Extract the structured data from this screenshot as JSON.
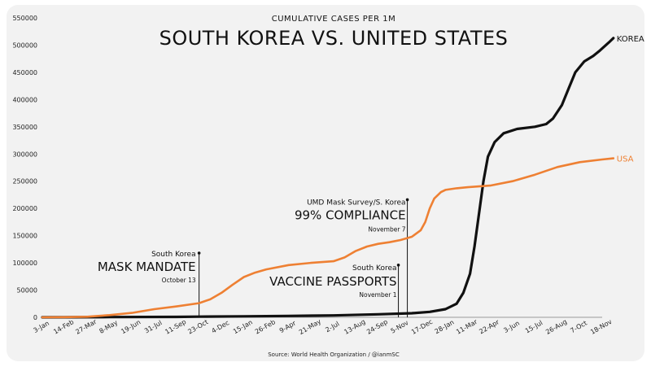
{
  "chart_data": {
    "type": "line",
    "subtitle": "CUMULATIVE CASES PER 1M",
    "title": "SOUTH KOREA VS. UNITED STATES",
    "source": "Source: World Health Organization / @ianmSC",
    "xlabel": "",
    "ylabel": "",
    "ylim": [
      0,
      550000
    ],
    "y_ticks": [
      0,
      50000,
      100000,
      150000,
      200000,
      250000,
      300000,
      350000,
      400000,
      450000,
      500000,
      550000
    ],
    "x_ticks": [
      "3-Jan",
      "14-Feb",
      "27-Mar",
      "8-May",
      "19-Jun",
      "31-Jul",
      "11-Sep",
      "23-Oct",
      "4-Dec",
      "15-Jan",
      "26-Feb",
      "9-Apr",
      "21-May",
      "2-Jul",
      "13-Aug",
      "24-Sep",
      "5-Nov",
      "17-Dec",
      "28-Jan",
      "11-Mar",
      "22-Apr",
      "3-Jun",
      "15-Jul",
      "26-Aug",
      "7-Oct",
      "18-Nov"
    ],
    "grid": false,
    "legend": "inline-end-labels",
    "series": [
      {
        "name": "KOREA",
        "color": "#111111",
        "points": [
          [
            0,
            0
          ],
          [
            3,
            500
          ],
          [
            6,
            800
          ],
          [
            7,
            1200
          ],
          [
            9,
            1800
          ],
          [
            11,
            2500
          ],
          [
            13,
            3500
          ],
          [
            15,
            5500
          ],
          [
            16.5,
            7500
          ],
          [
            17.3,
            10000
          ],
          [
            18,
            15000
          ],
          [
            18.5,
            25000
          ],
          [
            18.8,
            45000
          ],
          [
            19.1,
            80000
          ],
          [
            19.3,
            130000
          ],
          [
            19.5,
            190000
          ],
          [
            19.7,
            250000
          ],
          [
            19.9,
            295000
          ],
          [
            20.2,
            322000
          ],
          [
            20.6,
            338000
          ],
          [
            21.2,
            346000
          ],
          [
            22,
            350000
          ],
          [
            22.5,
            355000
          ],
          [
            22.8,
            365000
          ],
          [
            23.2,
            390000
          ],
          [
            23.5,
            420000
          ],
          [
            23.8,
            450000
          ],
          [
            24.2,
            470000
          ],
          [
            24.6,
            480000
          ],
          [
            24.9,
            490000
          ],
          [
            25.3,
            505000
          ],
          [
            25.5,
            513000
          ]
        ]
      },
      {
        "name": "USA",
        "color": "#ee8033",
        "points": [
          [
            0,
            0
          ],
          [
            1,
            300
          ],
          [
            2,
            1000
          ],
          [
            3,
            4000
          ],
          [
            4,
            8000
          ],
          [
            5,
            15000
          ],
          [
            6,
            20000
          ],
          [
            7,
            26000
          ],
          [
            7.5,
            33000
          ],
          [
            8,
            45000
          ],
          [
            8.5,
            60000
          ],
          [
            9,
            74000
          ],
          [
            9.5,
            82000
          ],
          [
            10,
            88000
          ],
          [
            11,
            96000
          ],
          [
            12,
            100000
          ],
          [
            13,
            103000
          ],
          [
            13.5,
            110000
          ],
          [
            14,
            122000
          ],
          [
            14.5,
            130000
          ],
          [
            15,
            135000
          ],
          [
            15.5,
            138000
          ],
          [
            16,
            142000
          ],
          [
            16.5,
            148000
          ],
          [
            16.9,
            160000
          ],
          [
            17.1,
            175000
          ],
          [
            17.3,
            200000
          ],
          [
            17.5,
            218000
          ],
          [
            17.8,
            230000
          ],
          [
            18,
            234000
          ],
          [
            18.5,
            237000
          ],
          [
            19,
            239000
          ],
          [
            20,
            242000
          ],
          [
            21,
            250000
          ],
          [
            22,
            262000
          ],
          [
            23,
            276000
          ],
          [
            24,
            285000
          ],
          [
            25,
            290000
          ],
          [
            25.5,
            292000
          ]
        ]
      }
    ],
    "annotations": [
      {
        "x": 7,
        "y": 118000,
        "line1": "South Korea",
        "line2": "MASK MANDATE",
        "line3": "October 13"
      },
      {
        "x": 16.3,
        "y": 216000,
        "line1": "UMD Mask Survey/S. Korea",
        "line2": "99% COMPLIANCE",
        "line3": "November 7"
      },
      {
        "x": 15.9,
        "y": 96000,
        "line1": "South Korea",
        "line2": "VACCINE PASSPORTS",
        "line3": "November 1"
      }
    ]
  }
}
